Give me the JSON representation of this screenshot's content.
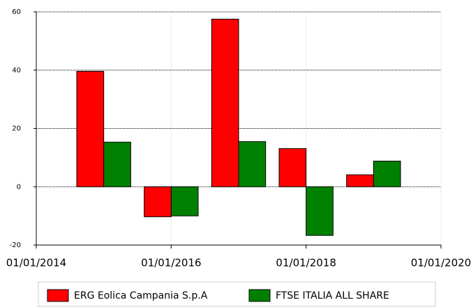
{
  "chart_data": {
    "type": "bar",
    "x": [
      2015,
      2016,
      2017,
      2018,
      2019
    ],
    "xlim": [
      2014,
      2020
    ],
    "xticks": [
      {
        "value": 2014,
        "label": "01/01/2014"
      },
      {
        "value": 2016,
        "label": "01/01/2016"
      },
      {
        "value": 2018,
        "label": "01/01/2018"
      },
      {
        "value": 2020,
        "label": "01/01/2020"
      }
    ],
    "ylim": [
      -20,
      60
    ],
    "yticks": [
      -20,
      0,
      20,
      40,
      60
    ],
    "grid": true,
    "legend": "bottom",
    "series": [
      {
        "name": "ERG Eolica Campania S.p.A",
        "color": "#ff0000",
        "values": [
          39.6,
          -10.3,
          57.5,
          13.1,
          4.1
        ]
      },
      {
        "name": "FTSE ITALIA ALL SHARE",
        "color": "#008000",
        "values": [
          15.3,
          -10.0,
          15.5,
          -16.7,
          8.8
        ]
      }
    ]
  }
}
